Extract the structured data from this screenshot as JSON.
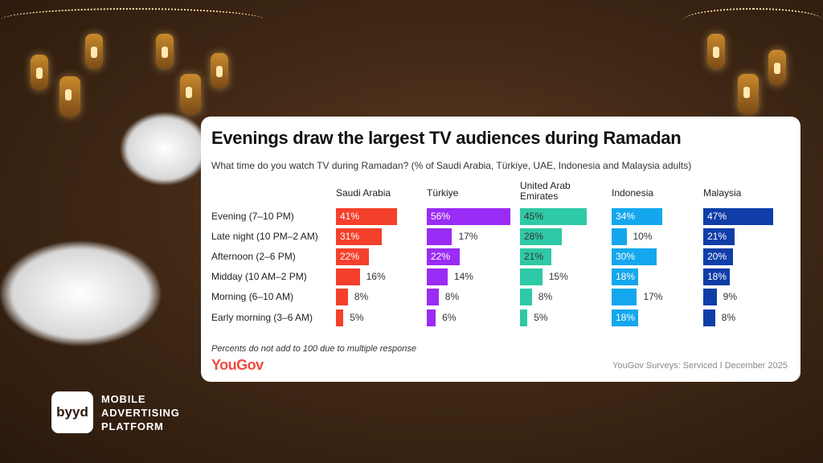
{
  "chart_data": {
    "type": "bar",
    "orientation": "horizontal",
    "layout": "small-multiples",
    "title": "Evenings draw the largest TV audiences during Ramadan",
    "subtitle": "What time do you watch TV during Ramadan? (% of Saudi Arabia, Türkiye, UAE, Indonesia and Malaysia adults)",
    "categories": [
      "Evening (7–10 PM)",
      "Late night (10 PM–2 AM)",
      "Afternoon (2–6 PM)",
      "Midday (10 AM–2 PM)",
      "Morning (6–10 AM)",
      "Early morning (3–6 AM)"
    ],
    "unit": "%",
    "series": [
      {
        "name": "Saudi Arabia",
        "color": "#f5402c",
        "label_color": "#ffffff",
        "values": [
          41,
          31,
          22,
          16,
          8,
          5
        ]
      },
      {
        "name": "Türkiye",
        "color": "#9a2cf5",
        "label_color": "#ffffff",
        "values": [
          56,
          17,
          22,
          14,
          8,
          6
        ]
      },
      {
        "name": "United Arab Emirates",
        "color": "#2ec9a6",
        "label_color": "#333333",
        "values": [
          45,
          28,
          21,
          15,
          8,
          5
        ]
      },
      {
        "name": "Indonesia",
        "color": "#14a7ee",
        "label_color": "#ffffff",
        "values": [
          34,
          10,
          30,
          18,
          17,
          18
        ]
      },
      {
        "name": "Malaysia",
        "color": "#0f3ea8",
        "label_color": "#ffffff",
        "values": [
          47,
          21,
          20,
          18,
          9,
          8
        ]
      }
    ],
    "note": "Percents do not add to 100 due to multiple response",
    "source": "YouGov Surveys: Serviced I December 2025",
    "grid": false
  },
  "brand": {
    "chart_logo": "YouGov",
    "logo": "byyd",
    "tagline": [
      "MOBILE",
      "ADVERTISING",
      "PLATFORM"
    ]
  }
}
